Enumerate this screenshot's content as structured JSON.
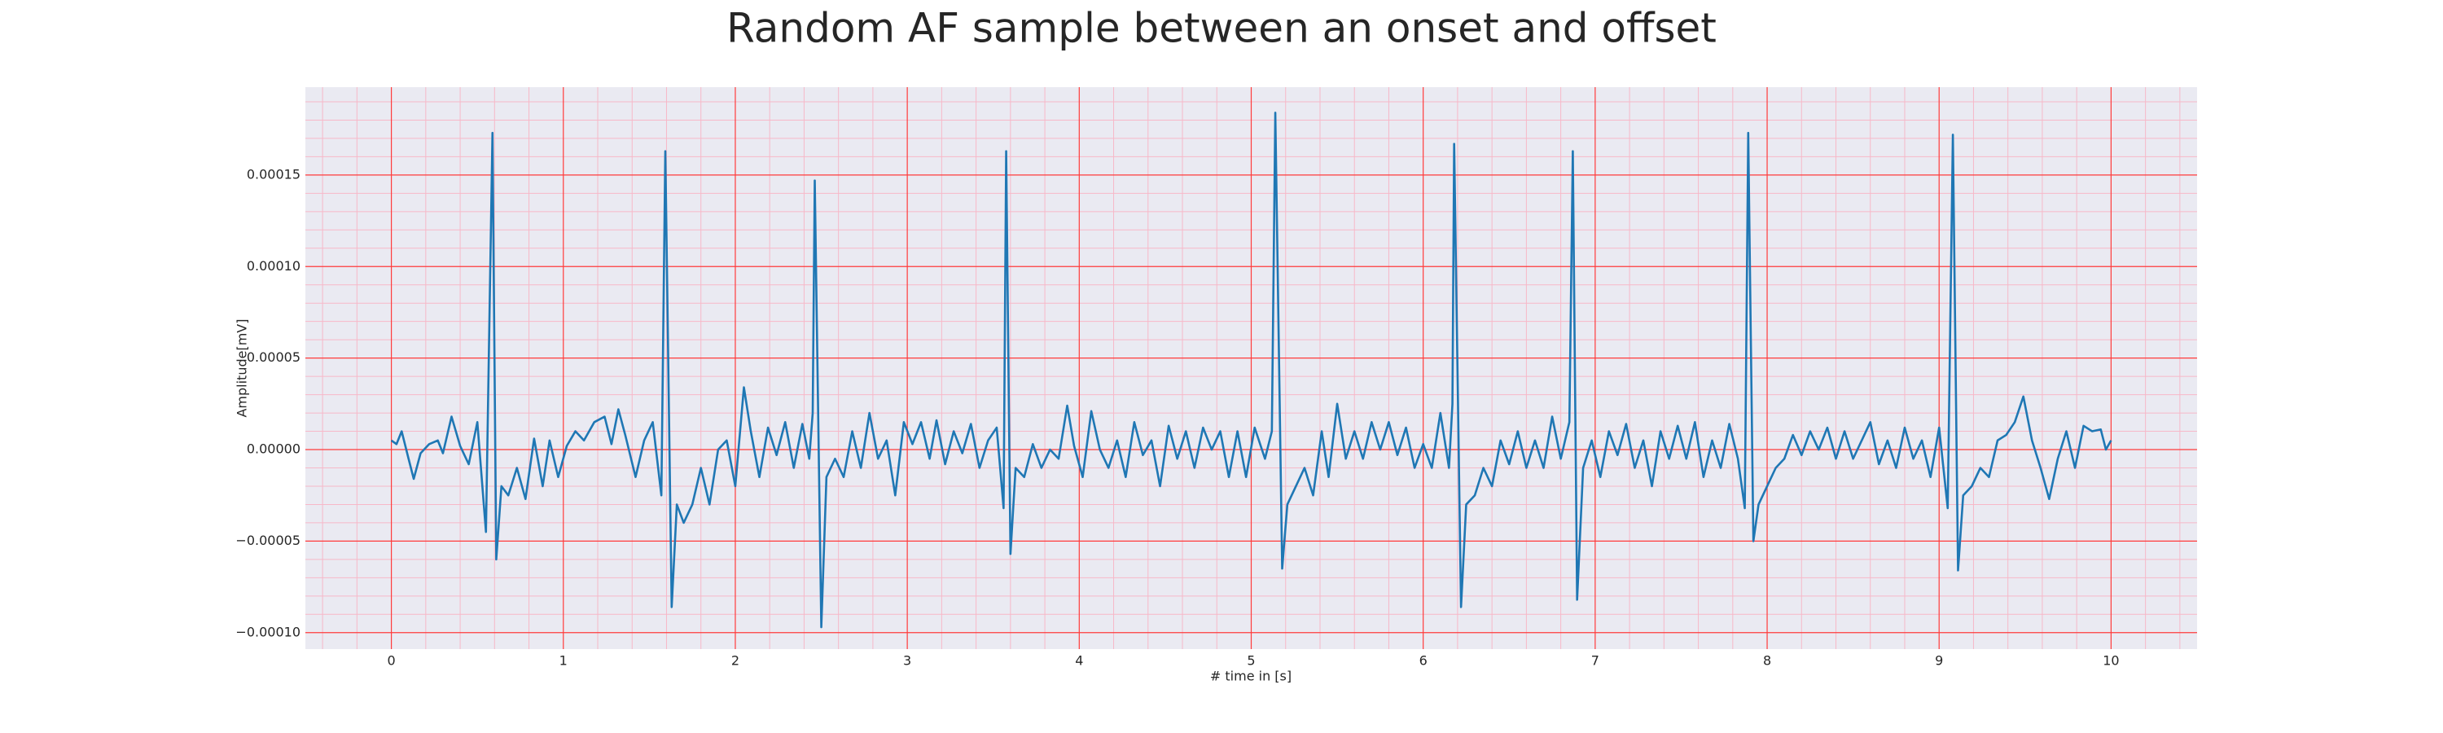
{
  "chart_data": {
    "type": "line",
    "title": "Random AF sample between an onset and offset",
    "x_label": "# time in [s]",
    "y_label": "Amplitude[mV]",
    "color": "#1f77b4",
    "background": "#eaeaf2",
    "grid": true,
    "grid_color": "#ff3b3b",
    "minor_grid_color": "#f7b8c8",
    "xlim": [
      -0.5,
      10.5
    ],
    "ylim": [
      -0.000109,
      0.000198
    ],
    "xticks": [
      0,
      1,
      2,
      3,
      4,
      5,
      6,
      7,
      8,
      9,
      10
    ],
    "yticks": [
      {
        "value": -0.0001,
        "label": "−0.00010"
      },
      {
        "value": -5e-05,
        "label": "−0.00005"
      },
      {
        "value": 0,
        "label": "0.00000"
      },
      {
        "value": 5e-05,
        "label": "0.00005"
      },
      {
        "value": 0.0001,
        "label": "0.00010"
      },
      {
        "value": 0.00015,
        "label": "0.00015"
      }
    ],
    "xminorticks": [
      -0.4,
      -0.2,
      0.2,
      0.4,
      0.6,
      0.8,
      1.2,
      1.4,
      1.6,
      1.8,
      2.2,
      2.4,
      2.6,
      2.8,
      3.2,
      3.4,
      3.6,
      3.8,
      4.2,
      4.4,
      4.6,
      4.8,
      5.2,
      5.4,
      5.6,
      5.8,
      6.2,
      6.4,
      6.6,
      6.8,
      7.2,
      7.4,
      7.6,
      7.8,
      8.2,
      8.4,
      8.6,
      8.8,
      9.2,
      9.4,
      9.6,
      9.8,
      10.2,
      10.4
    ],
    "yminorticks": [
      -9e-05,
      -8e-05,
      -7e-05,
      -6e-05,
      -4e-05,
      -3e-05,
      -2e-05,
      -1e-05,
      1e-05,
      2e-05,
      3e-05,
      4e-05,
      6e-05,
      7e-05,
      8e-05,
      9e-05,
      0.00011,
      0.00012,
      0.00013,
      0.00014,
      0.00016,
      0.00017,
      0.00018,
      0.00019
    ],
    "x": [
      0,
      0.03,
      0.06,
      0.1,
      0.13,
      0.17,
      0.22,
      0.27,
      0.3,
      0.35,
      0.4,
      0.45,
      0.5,
      0.55,
      0.588,
      0.61,
      0.64,
      0.68,
      0.73,
      0.78,
      0.83,
      0.88,
      0.92,
      0.97,
      1.02,
      1.07,
      1.12,
      1.18,
      1.24,
      1.28,
      1.32,
      1.36,
      1.42,
      1.47,
      1.52,
      1.57,
      1.593,
      1.63,
      1.66,
      1.7,
      1.75,
      1.8,
      1.85,
      1.9,
      1.95,
      2.0,
      2.05,
      2.09,
      2.14,
      2.19,
      2.24,
      2.29,
      2.34,
      2.39,
      2.43,
      2.45,
      2.462,
      2.5,
      2.53,
      2.58,
      2.63,
      2.68,
      2.73,
      2.78,
      2.83,
      2.88,
      2.93,
      2.98,
      3.03,
      3.08,
      3.13,
      3.17,
      3.22,
      3.27,
      3.32,
      3.37,
      3.42,
      3.47,
      3.52,
      3.56,
      3.575,
      3.6,
      3.63,
      3.68,
      3.73,
      3.78,
      3.83,
      3.88,
      3.93,
      3.97,
      4.02,
      4.07,
      4.12,
      4.17,
      4.22,
      4.27,
      4.32,
      4.37,
      4.42,
      4.47,
      4.52,
      4.57,
      4.62,
      4.67,
      4.72,
      4.77,
      4.82,
      4.87,
      4.92,
      4.97,
      5.02,
      5.08,
      5.12,
      5.14,
      5.18,
      5.21,
      5.26,
      5.31,
      5.36,
      5.41,
      5.45,
      5.5,
      5.55,
      5.6,
      5.65,
      5.7,
      5.75,
      5.8,
      5.85,
      5.9,
      5.95,
      6.0,
      6.05,
      6.1,
      6.15,
      6.17,
      6.18,
      6.22,
      6.25,
      6.3,
      6.35,
      6.4,
      6.45,
      6.5,
      6.55,
      6.6,
      6.65,
      6.7,
      6.75,
      6.8,
      6.85,
      6.87,
      6.895,
      6.93,
      6.98,
      7.03,
      7.08,
      7.13,
      7.18,
      7.23,
      7.28,
      7.33,
      7.38,
      7.43,
      7.48,
      7.53,
      7.58,
      7.63,
      7.68,
      7.73,
      7.78,
      7.83,
      7.87,
      7.89,
      7.92,
      7.95,
      8.0,
      8.05,
      8.1,
      8.15,
      8.2,
      8.25,
      8.3,
      8.35,
      8.4,
      8.45,
      8.5,
      8.55,
      8.6,
      8.65,
      8.7,
      8.75,
      8.8,
      8.85,
      8.9,
      8.95,
      9.0,
      9.05,
      9.08,
      9.11,
      9.14,
      9.19,
      9.24,
      9.29,
      9.34,
      9.39,
      9.44,
      9.49,
      9.54,
      9.59,
      9.64,
      9.69,
      9.74,
      9.79,
      9.84,
      9.89,
      9.94,
      9.97,
      10.0
    ],
    "values": [
      5e-06,
      3e-06,
      1e-05,
      -5e-06,
      -1.6e-05,
      -2e-06,
      3e-06,
      5e-06,
      -2e-06,
      1.8e-05,
      2e-06,
      -8e-06,
      1.5e-05,
      -4.5e-05,
      0.000173,
      -6e-05,
      -2e-05,
      -2.5e-05,
      -1e-05,
      -2.7e-05,
      6e-06,
      -2e-05,
      5e-06,
      -1.5e-05,
      2e-06,
      1e-05,
      5e-06,
      1.5e-05,
      1.8e-05,
      3e-06,
      2.2e-05,
      8e-06,
      -1.5e-05,
      5e-06,
      1.5e-05,
      -2.5e-05,
      0.000163,
      -8.6e-05,
      -3e-05,
      -4e-05,
      -3e-05,
      -1e-05,
      -3e-05,
      0,
      5e-06,
      -2e-05,
      3.4e-05,
      1e-05,
      -1.5e-05,
      1.2e-05,
      -3e-06,
      1.5e-05,
      -1e-05,
      1.4e-05,
      -5e-06,
      2e-05,
      0.000147,
      -9.7e-05,
      -1.5e-05,
      -5e-06,
      -1.5e-05,
      1e-05,
      -1e-05,
      2e-05,
      -5e-06,
      5e-06,
      -2.5e-05,
      1.5e-05,
      3e-06,
      1.5e-05,
      -5e-06,
      1.6e-05,
      -8e-06,
      1e-05,
      -2e-06,
      1.4e-05,
      -1e-05,
      5e-06,
      1.2e-05,
      -3.2e-05,
      0.000163,
      -5.7e-05,
      -1e-05,
      -1.5e-05,
      3e-06,
      -1e-05,
      0,
      -5e-06,
      2.4e-05,
      2e-06,
      -1.5e-05,
      2.1e-05,
      0,
      -1e-05,
      5e-06,
      -1.5e-05,
      1.5e-05,
      -3e-06,
      5e-06,
      -2e-05,
      1.3e-05,
      -5e-06,
      1e-05,
      -1e-05,
      1.2e-05,
      0,
      1e-05,
      -1.5e-05,
      1e-05,
      -1.5e-05,
      1.2e-05,
      -5e-06,
      1e-05,
      0.000184,
      -6.5e-05,
      -3e-05,
      -2e-05,
      -1e-05,
      -2.5e-05,
      1e-05,
      -1.5e-05,
      2.5e-05,
      -5e-06,
      1e-05,
      -5e-06,
      1.5e-05,
      0,
      1.5e-05,
      -3e-06,
      1.2e-05,
      -1e-05,
      3e-06,
      -1e-05,
      2e-05,
      -1e-05,
      2.5e-05,
      0.000167,
      -8.6e-05,
      -3e-05,
      -2.5e-05,
      -1e-05,
      -2e-05,
      5e-06,
      -8e-06,
      1e-05,
      -1e-05,
      5e-06,
      -1e-05,
      1.8e-05,
      -5e-06,
      1.5e-05,
      0.000163,
      -8.2e-05,
      -1e-05,
      5e-06,
      -1.5e-05,
      1e-05,
      -3e-06,
      1.4e-05,
      -1e-05,
      5e-06,
      -2e-05,
      1e-05,
      -5e-06,
      1.3e-05,
      -5e-06,
      1.5e-05,
      -1.5e-05,
      5e-06,
      -1e-05,
      1.4e-05,
      -5e-06,
      -3.2e-05,
      0.000173,
      -5e-05,
      -3e-05,
      -2e-05,
      -1e-05,
      -5e-06,
      8e-06,
      -3e-06,
      1e-05,
      0,
      1.2e-05,
      -5e-06,
      1e-05,
      -5e-06,
      5e-06,
      1.5e-05,
      -8e-06,
      5e-06,
      -1e-05,
      1.2e-05,
      -5e-06,
      5e-06,
      -1.5e-05,
      1.2e-05,
      -3.2e-05,
      0.000172,
      -6.6e-05,
      -2.5e-05,
      -2e-05,
      -1e-05,
      -1.5e-05,
      5e-06,
      8e-06,
      1.5e-05,
      2.9e-05,
      5e-06,
      -1e-05,
      -2.7e-05,
      -5e-06,
      1e-05,
      -1e-05,
      1.3e-05,
      1e-05,
      1.1e-05,
      0,
      5e-06
    ]
  }
}
